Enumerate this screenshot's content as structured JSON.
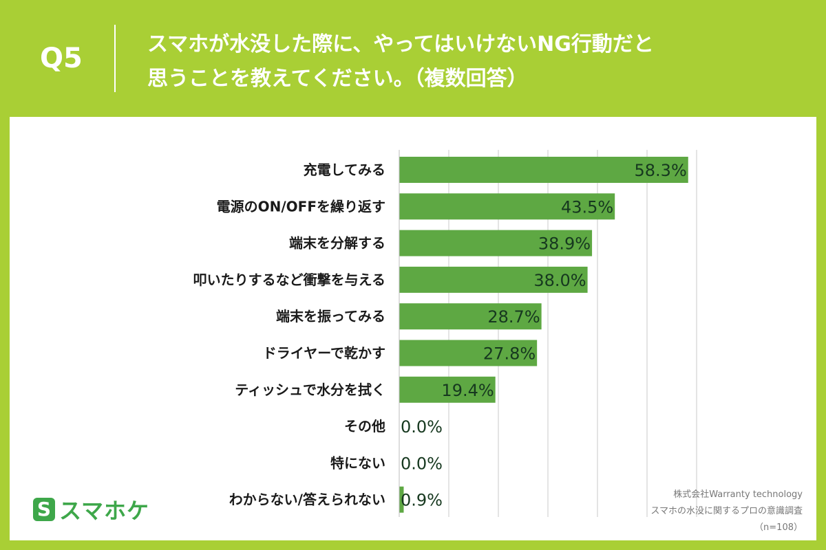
{
  "header": {
    "question_number": "Q5",
    "question_line1": "スマホが水没した際に、やってはいけないNG行動だと",
    "question_line2": "思うことを教えてください。（複数回答）"
  },
  "logo": {
    "mark": "S",
    "text": "スマホケ"
  },
  "source": {
    "line1": "株式会社Warranty technology",
    "line2": "スマホの水没に関するプロの意識調査",
    "line3": "（n=108）"
  },
  "colors": {
    "background": "#a9cf35",
    "bar": "#5ea843",
    "value_label": "#16381f"
  },
  "chart_data": {
    "type": "bar",
    "orientation": "horizontal",
    "categories": [
      "充電してみる",
      "電源のON/OFFを繰り返す",
      "端末を分解する",
      "叩いたりするなど衝撃を与える",
      "端末を振ってみる",
      "ドライヤーで乾かす",
      "ティッシュで水分を拭く",
      "その他",
      "特にない",
      "わからない/答えられない"
    ],
    "values": [
      58.3,
      43.5,
      38.9,
      38.0,
      28.7,
      27.8,
      19.4,
      0.0,
      0.0,
      0.9
    ],
    "value_labels": [
      "58.3%",
      "43.5%",
      "38.9%",
      "38.0%",
      "28.7%",
      "27.8%",
      "19.4%",
      "0.0%",
      "0.0%",
      "0.9%"
    ],
    "xlim": [
      0,
      60
    ],
    "grid": true,
    "legend": "none"
  }
}
